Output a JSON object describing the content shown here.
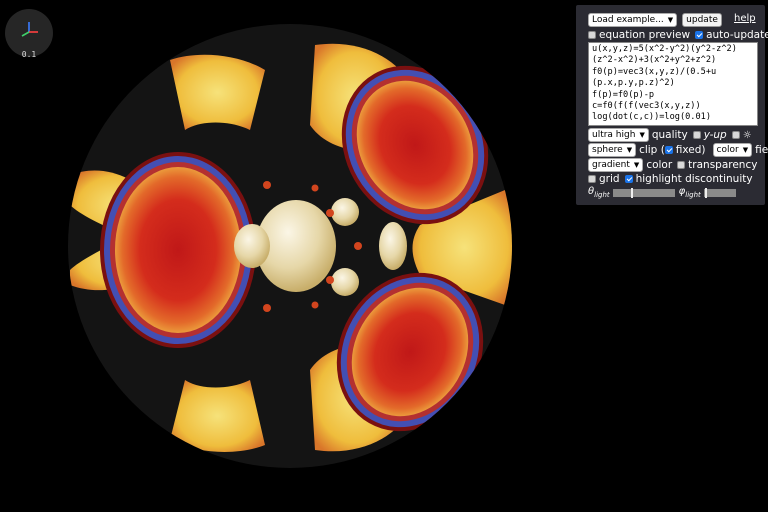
{
  "scale_readout": "0.1",
  "toolbar": {
    "examples_select": "Load example...",
    "update_button": "update",
    "help_link": "help"
  },
  "options": {
    "equation_preview": {
      "label": "equation preview",
      "checked": false
    },
    "auto_update": {
      "label": "auto-update",
      "checked": true
    }
  },
  "equation_lines": [
    "u(x,y,z)=5(x^2-y^2)(y^2-z^2)",
    "(z^2-x^2)+3(x^2+y^2+z^2)",
    "f0(p)=vec3(x,y,z)/(0.5+u",
    "(p.x,p.y,p.z)^2)",
    "f(p)=f0(p)-p",
    "c=f0(f(f(vec3(x,y,z))",
    "log(dot(c,c))=log(0.01)"
  ],
  "quality": {
    "select": "ultra high",
    "label": "quality",
    "y_up_label": "y-up",
    "y_up_checked": false,
    "light_checked": false
  },
  "clip": {
    "select": "sphere",
    "label_before": "clip (",
    "fixed_label": "fixed)",
    "fixed_checked": true,
    "field_select": "color",
    "field_label": "field"
  },
  "color": {
    "select": "gradient",
    "label": "color",
    "transparency_label": "transparency",
    "transparency_checked": false
  },
  "display": {
    "grid_label": "grid",
    "grid_checked": false,
    "highlight_label": "highlight discontinuity",
    "highlight_checked": true
  },
  "light": {
    "theta_symbol": "θ",
    "theta_sub": "light",
    "theta_value": 0.3,
    "phi_symbol": "φ",
    "phi_sub": "light",
    "phi_value": 0.05
  }
}
